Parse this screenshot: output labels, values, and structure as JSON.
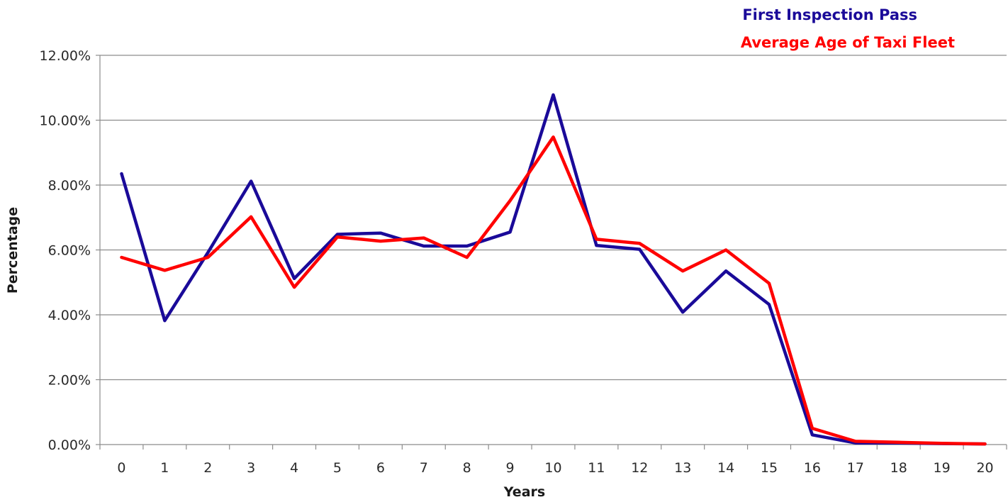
{
  "chart_data": {
    "type": "line",
    "title": "",
    "xlabel": "Years",
    "ylabel": "Percentage",
    "ylim": [
      0,
      0.12
    ],
    "y_ticks": [
      "0.00%",
      "2.00%",
      "4.00%",
      "6.00%",
      "8.00%",
      "10.00%",
      "12.00%"
    ],
    "y_tick_values": [
      0,
      0.02,
      0.04,
      0.06,
      0.08,
      0.1,
      0.12
    ],
    "categories": [
      "0",
      "1",
      "2",
      "3",
      "4",
      "5",
      "6",
      "7",
      "8",
      "9",
      "10",
      "11",
      "12",
      "13",
      "14",
      "15",
      "16",
      "17",
      "18",
      "19",
      "20"
    ],
    "grid": "horizontal",
    "legend_position": "top-right",
    "series": [
      {
        "name": "First Inspection Pass",
        "color": "#1a0a99",
        "values": [
          0.0835,
          0.0382,
          0.0592,
          0.0812,
          0.0512,
          0.0648,
          0.0652,
          0.0612,
          0.0612,
          0.0655,
          0.1078,
          0.0614,
          0.0602,
          0.0408,
          0.0535,
          0.0432,
          0.003,
          0.0005,
          0.0005,
          0.0003,
          0.0002
        ]
      },
      {
        "name": "Average Age of Taxi Fleet",
        "color": "#ff0000",
        "values": [
          0.0577,
          0.0537,
          0.0577,
          0.0702,
          0.0485,
          0.064,
          0.0627,
          0.0637,
          0.0577,
          0.0752,
          0.0948,
          0.0633,
          0.062,
          0.0535,
          0.06,
          0.0497,
          0.005,
          0.001,
          0.0007,
          0.0004,
          0.0002
        ]
      }
    ]
  }
}
